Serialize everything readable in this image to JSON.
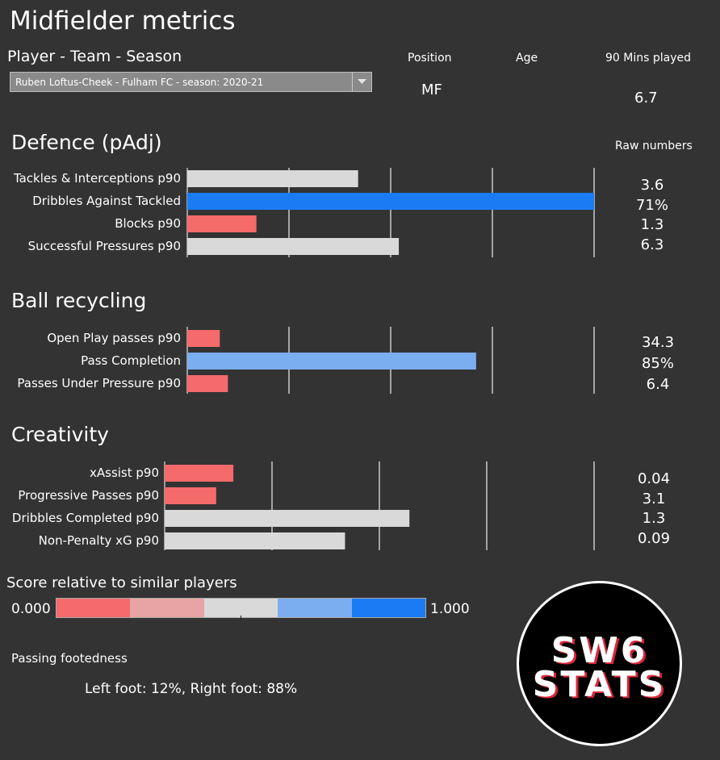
{
  "header": {
    "title": "Midfielder metrics",
    "subtitle": "Player - Team - Season",
    "dropdown_value": "Ruben Loftus-Cheek - Fulham FC - season: 2020-21",
    "position_label": "Position",
    "position_value": "MF",
    "age_label": "Age",
    "age_value": "",
    "mins_label": "90 Mins played",
    "mins_value": "6.7",
    "raw_numbers_label": "Raw numbers"
  },
  "chart_data": [
    {
      "type": "bar",
      "title": "Defence (pAdj)",
      "xlim": [
        0,
        1
      ],
      "categories": [
        "Tackles & Interceptions p90",
        "Dribbles Against Tackled",
        "Blocks p90",
        "Successful Pressures p90"
      ],
      "values": [
        0.42,
        1.0,
        0.17,
        0.52
      ],
      "colors": [
        "#d9d9d9",
        "#1a7cf5",
        "#f56a6a",
        "#d9d9d9"
      ],
      "raw": [
        "3.6",
        "71%",
        "1.3",
        "6.3"
      ]
    },
    {
      "type": "bar",
      "title": "Ball recycling",
      "xlim": [
        0,
        1
      ],
      "categories": [
        "Open Play passes p90",
        "Pass Completion",
        "Passes Under Pressure p90"
      ],
      "values": [
        0.08,
        0.71,
        0.1
      ],
      "colors": [
        "#f56a6a",
        "#7aaef0",
        "#f56a6a"
      ],
      "raw": [
        "34.3",
        "85%",
        "6.4"
      ]
    },
    {
      "type": "bar",
      "title": "Creativity",
      "xlim": [
        0,
        1
      ],
      "categories": [
        "xAssist p90",
        "Progressive Passes p90",
        "Dribbles Completed p90",
        "Non-Penalty xG p90"
      ],
      "values": [
        0.16,
        0.12,
        0.57,
        0.42
      ],
      "colors": [
        "#f56a6a",
        "#f56a6a",
        "#d9d9d9",
        "#d9d9d9"
      ],
      "raw": [
        "0.04",
        "3.1",
        "1.3",
        "0.09"
      ]
    }
  ],
  "legend": {
    "title": "Score relative to similar players",
    "min_label": "0.000",
    "max_label": "1.000",
    "colors": [
      "#f56a6a",
      "#e8a4a4",
      "#d9d9d9",
      "#7aaef0",
      "#1a7cf5"
    ]
  },
  "footedness": {
    "title": "Passing footedness",
    "text": "Left foot: 12%, Right foot: 88%"
  },
  "logo": {
    "line1": "SW6",
    "line2": "STATS"
  }
}
